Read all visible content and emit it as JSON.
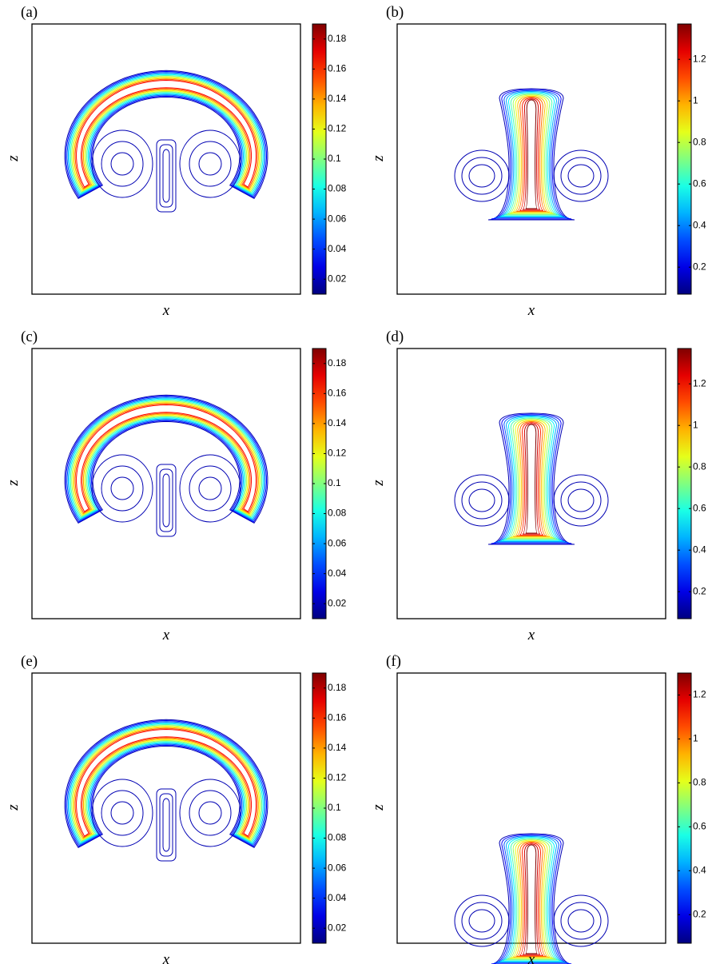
{
  "chart_data": [
    {
      "type": "contour",
      "label": "(a)",
      "xlabel": "x",
      "ylabel": "z",
      "colormap": "jet",
      "clim": [
        0.01,
        0.19
      ],
      "cticks": [
        0.02,
        0.04,
        0.06,
        0.08,
        0.1,
        0.12,
        0.14,
        0.16,
        0.18
      ]
    },
    {
      "type": "contour",
      "label": "(b)",
      "xlabel": "x",
      "ylabel": "z",
      "colormap": "jet",
      "clim": [
        0.07,
        1.37
      ],
      "cticks": [
        0.2,
        0.4,
        0.6,
        0.8,
        1,
        1.2
      ]
    },
    {
      "type": "contour",
      "label": "(c)",
      "xlabel": "x",
      "ylabel": "z",
      "colormap": "jet",
      "clim": [
        0.01,
        0.19
      ],
      "cticks": [
        0.02,
        0.04,
        0.06,
        0.08,
        0.1,
        0.12,
        0.14,
        0.16,
        0.18
      ]
    },
    {
      "type": "contour",
      "label": "(d)",
      "xlabel": "x",
      "ylabel": "z",
      "colormap": "jet",
      "clim": [
        0.07,
        1.37
      ],
      "cticks": [
        0.2,
        0.4,
        0.6,
        0.8,
        1,
        1.2
      ]
    },
    {
      "type": "contour",
      "label": "(e)",
      "xlabel": "x",
      "ylabel": "z",
      "colormap": "jet",
      "clim": [
        0.01,
        0.19
      ],
      "cticks": [
        0.02,
        0.04,
        0.06,
        0.08,
        0.1,
        0.12,
        0.14,
        0.16,
        0.18
      ]
    },
    {
      "type": "contour",
      "label": "(f)",
      "xlabel": "x",
      "ylabel": "z",
      "colormap": "jet",
      "clim": [
        0.07,
        1.3
      ],
      "cticks": [
        0.2,
        0.4,
        0.6,
        0.8,
        1,
        1.2
      ]
    }
  ]
}
